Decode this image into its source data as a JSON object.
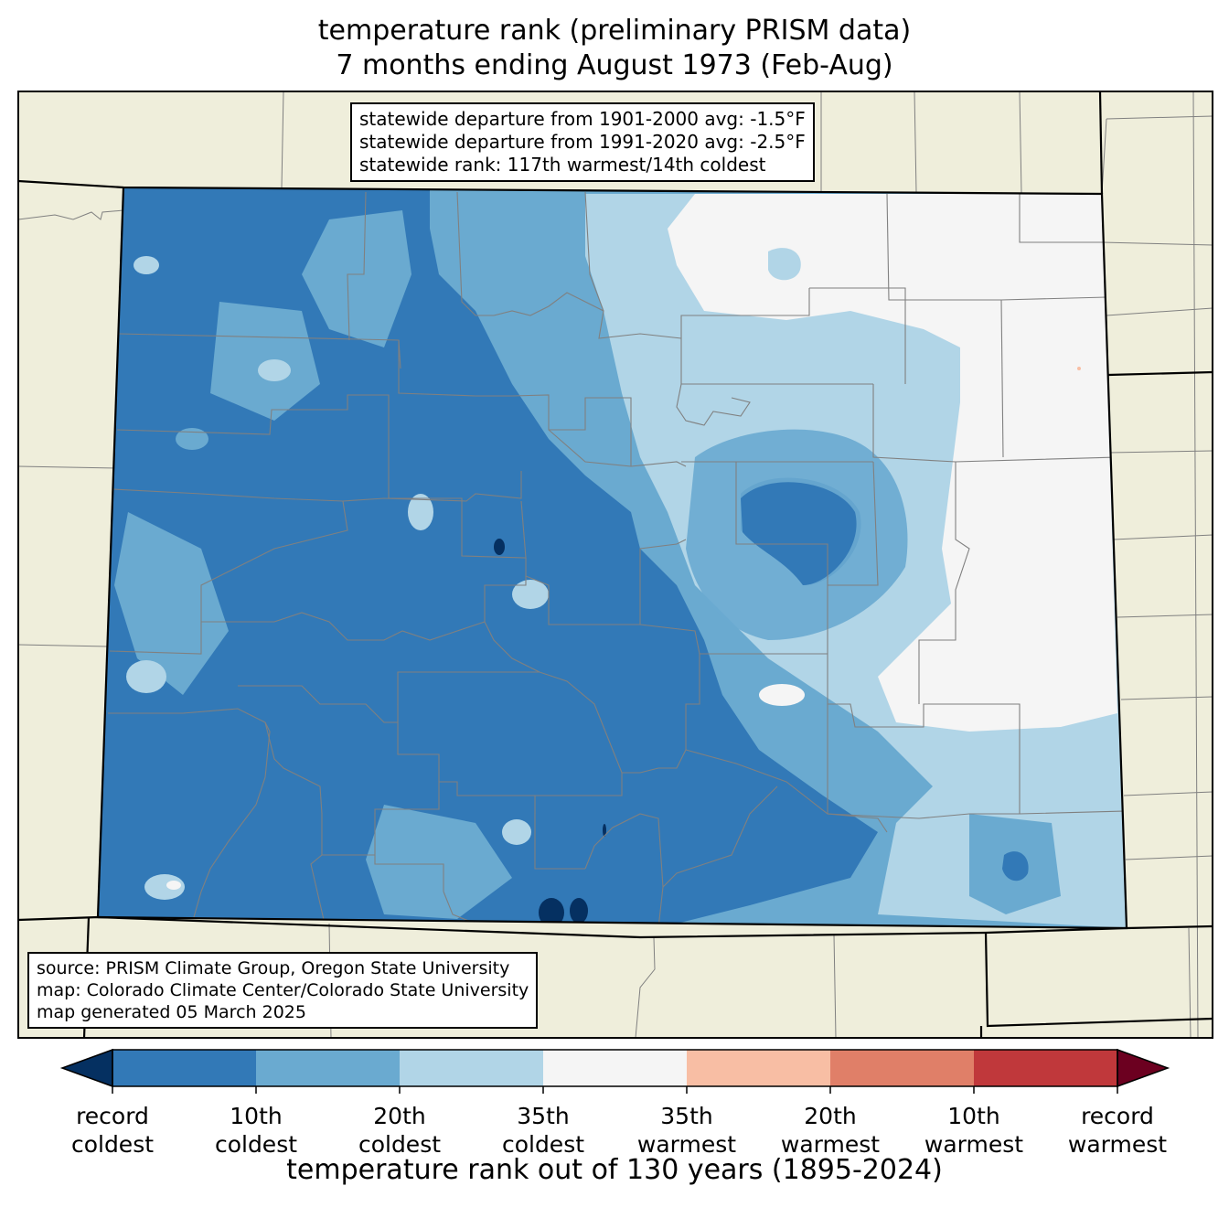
{
  "title": {
    "line1": "temperature rank (preliminary PRISM data)",
    "line2": "7 months ending August 1973 (Feb-Aug)"
  },
  "stats_box": {
    "line1": "statewide departure from 1901-2000 avg: -1.5°F",
    "line2": "statewide departure from 1991-2020 avg: -2.5°F",
    "line3": "statewide rank: 117th warmest/14th coldest"
  },
  "source_box": {
    "line1": "source: PRISM Climate Group, Oregon State University",
    "line2": "map: Colorado Climate Center/Colorado State University",
    "line3": "map generated 05 March 2025"
  },
  "colors": {
    "land_outside": "#efeedb",
    "record_coldest": "#053061",
    "coldest_10": "#3279b7",
    "coldest_20": "#6aaad0",
    "coldest_35": "#b1d5e7",
    "middle": "#f5f5f5",
    "warmest_35": "#f8bea4",
    "warmest_20": "#e07f68",
    "warmest_10": "#c0383b",
    "record_warmest": "#6c0020",
    "county_lines": "#808080",
    "state_lines": "#000000"
  },
  "colorbar": {
    "ticks": [
      {
        "line1": "record",
        "line2": "coldest"
      },
      {
        "line1": "10th",
        "line2": "coldest"
      },
      {
        "line1": "20th",
        "line2": "coldest"
      },
      {
        "line1": "35th",
        "line2": "coldest"
      },
      {
        "line1": "35th",
        "line2": "warmest"
      },
      {
        "line1": "20th",
        "line2": "warmest"
      },
      {
        "line1": "10th",
        "line2": "warmest"
      },
      {
        "line1": "record",
        "line2": "warmest"
      }
    ],
    "title": "temperature rank out of 130 years (1895-2024)"
  }
}
